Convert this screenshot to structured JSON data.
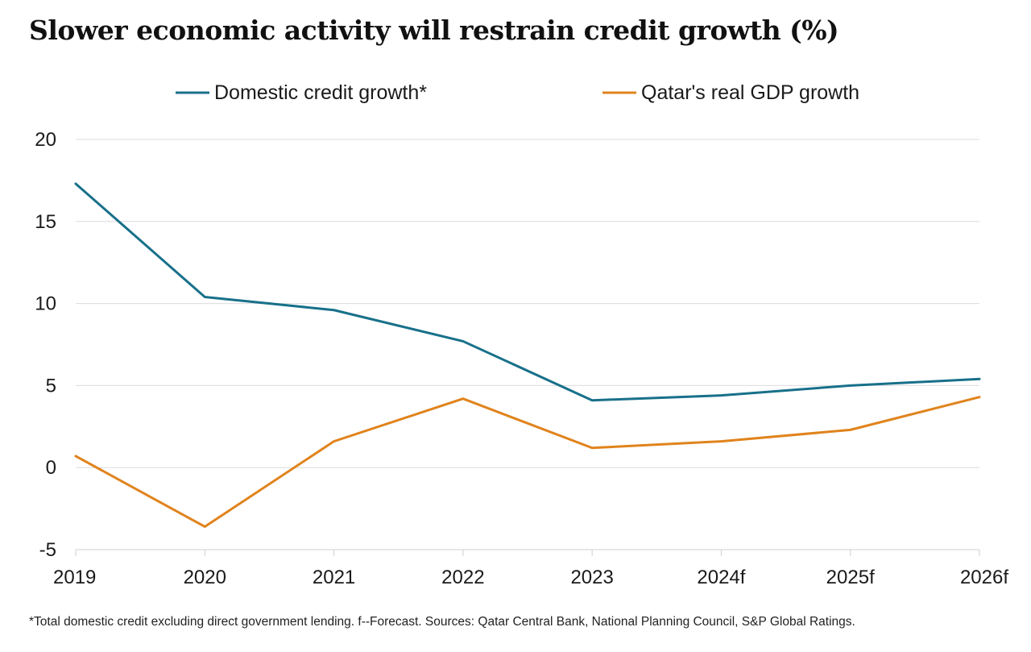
{
  "chart_data": {
    "type": "line",
    "title": "Slower economic activity will restrain credit growth (%)",
    "categories": [
      "2019",
      "2020",
      "2021",
      "2022",
      "2023",
      "2024f",
      "2025f",
      "2026f"
    ],
    "series": [
      {
        "name": "Domestic credit growth*",
        "color": "#18708a",
        "values": [
          17.3,
          10.4,
          9.6,
          7.7,
          4.1,
          4.4,
          5.0,
          5.4
        ]
      },
      {
        "name": "Qatar's real GDP growth",
        "color": "#e0831c",
        "values": [
          0.7,
          -3.6,
          1.6,
          4.2,
          1.2,
          1.6,
          2.3,
          4.3
        ]
      }
    ],
    "ylim": [
      -5,
      20
    ],
    "yticks": [
      -5,
      0,
      5,
      10,
      15,
      20
    ],
    "grid": true,
    "legend_position": "top",
    "footnote": "*Total domestic credit excluding direct government lending. f--Forecast. Sources: Qatar Central Bank, National Planning Council, S&P Global Ratings."
  }
}
